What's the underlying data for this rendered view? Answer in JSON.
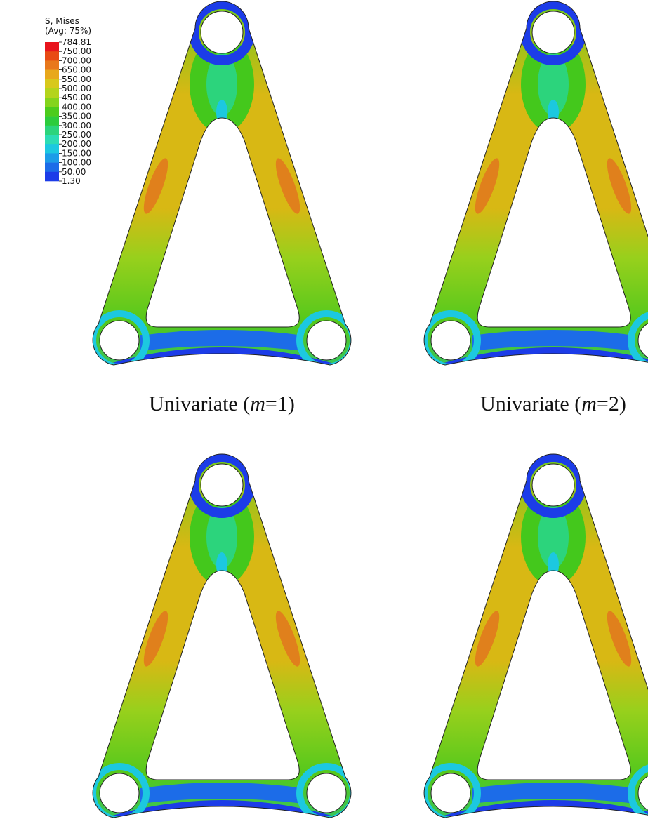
{
  "legend": {
    "title": "S, Mises",
    "subtitle": "(Avg: 75%)",
    "labels": [
      "784.81",
      "750.00",
      "700.00",
      "650.00",
      "550.00",
      "500.00",
      "450.00",
      "400.00",
      "350.00",
      "300.00",
      "250.00",
      "200.00",
      "150.00",
      "100.00",
      "50.00",
      "1.30"
    ],
    "colors": [
      "#e8141c",
      "#e84a14",
      "#e8781c",
      "#e8a81c",
      "#d8c81c",
      "#b4d41c",
      "#84d41c",
      "#4ccc1c",
      "#2ccc3c",
      "#2cd47c",
      "#2cdcb4",
      "#1cc8e0",
      "#1c9ce8",
      "#1c6ce8",
      "#1c3ce8"
    ]
  },
  "panels": [
    {
      "caption": {
        "prefix": "Univariate (",
        "variable": "m",
        "suffix": "=1)"
      }
    },
    {
      "caption": {
        "prefix": "Univariate (",
        "variable": "m",
        "suffix": "=2)"
      }
    },
    {},
    {}
  ]
}
